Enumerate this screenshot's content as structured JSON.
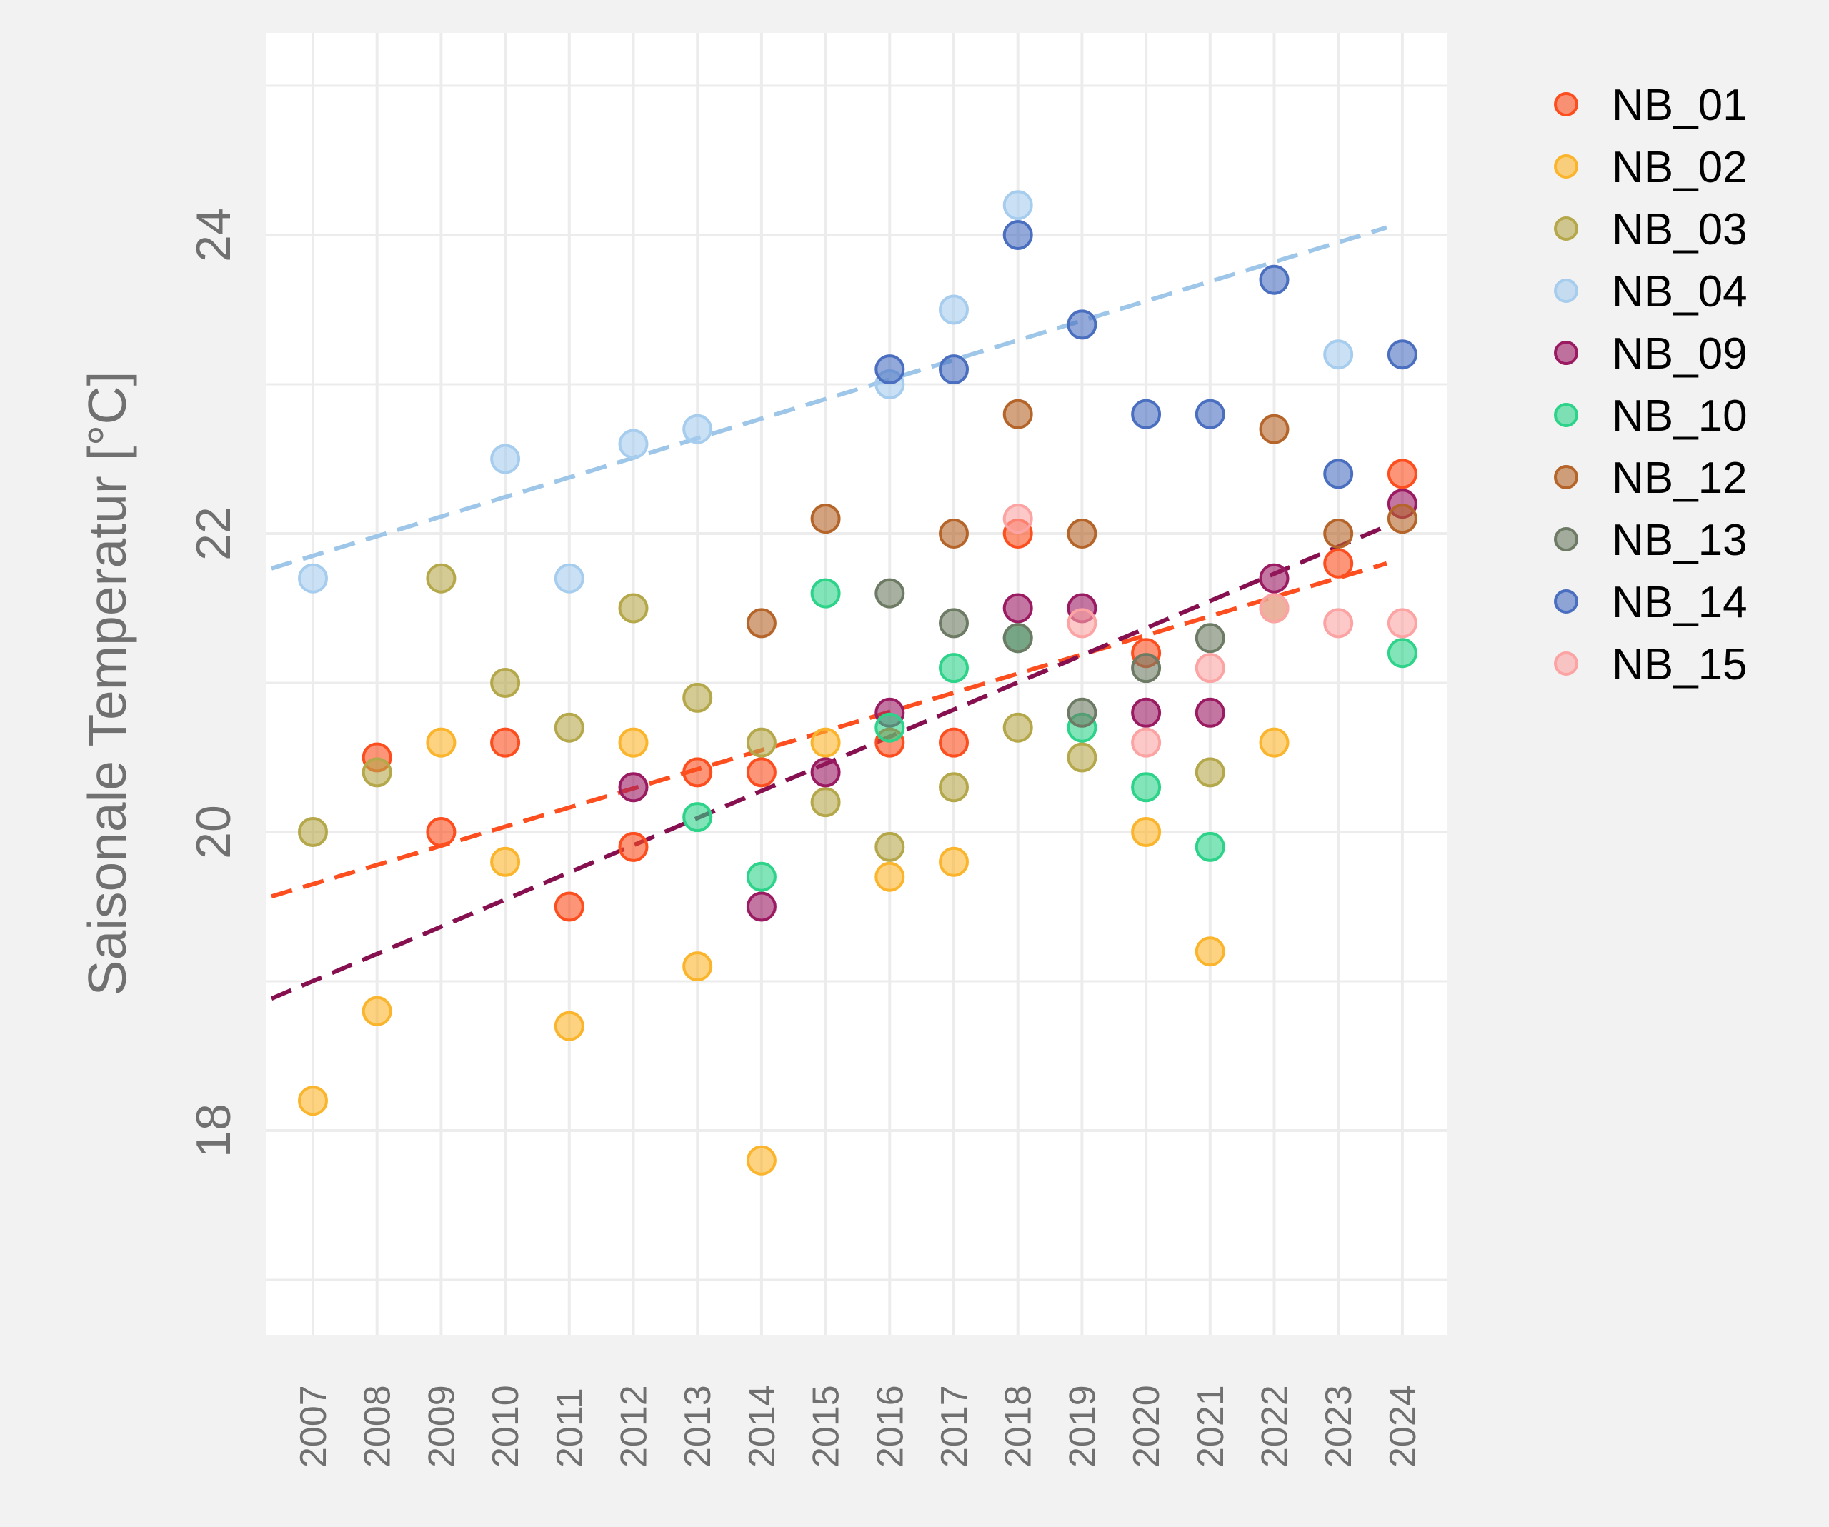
{
  "chart_data": {
    "type": "scatter",
    "title": "",
    "xlabel": "",
    "ylabel": "Saisonale Temperatur [°C]",
    "x": [
      "2007",
      "2008",
      "2009",
      "2010",
      "2011",
      "2012",
      "2013",
      "2014",
      "2015",
      "2016",
      "2017",
      "2018",
      "2019",
      "2020",
      "2021",
      "2022",
      "2023",
      "2024"
    ],
    "yticks": [
      18,
      20,
      22,
      24
    ],
    "ylim": [
      16.8,
      25.5
    ],
    "grid": true,
    "legend_position": "right",
    "series": [
      {
        "name": "NB_01",
        "color": "#fc4e1e",
        "points": [
          [
            2008,
            20.5
          ],
          [
            2009,
            20.0
          ],
          [
            2010,
            20.6
          ],
          [
            2011,
            19.5
          ],
          [
            2012,
            19.9
          ],
          [
            2013,
            20.4
          ],
          [
            2014,
            20.4
          ],
          [
            2016,
            20.6
          ],
          [
            2017,
            20.6
          ],
          [
            2018,
            22.0
          ],
          [
            2020,
            21.2
          ],
          [
            2023,
            21.8
          ],
          [
            2024,
            22.4
          ]
        ]
      },
      {
        "name": "NB_02",
        "color": "#fbb52d",
        "points": [
          [
            2007,
            18.2
          ],
          [
            2008,
            18.8
          ],
          [
            2009,
            20.6
          ],
          [
            2010,
            19.8
          ],
          [
            2011,
            18.7
          ],
          [
            2012,
            20.6
          ],
          [
            2013,
            19.1
          ],
          [
            2014,
            17.8
          ],
          [
            2015,
            20.6
          ],
          [
            2016,
            19.7
          ],
          [
            2017,
            19.8
          ],
          [
            2020,
            20.0
          ],
          [
            2021,
            19.2
          ],
          [
            2022,
            20.6
          ]
        ]
      },
      {
        "name": "NB_03",
        "color": "#b5a84b",
        "points": [
          [
            2007,
            20.0
          ],
          [
            2008,
            20.4
          ],
          [
            2009,
            21.7
          ],
          [
            2010,
            21.0
          ],
          [
            2011,
            20.7
          ],
          [
            2012,
            21.5
          ],
          [
            2013,
            20.9
          ],
          [
            2014,
            20.6
          ],
          [
            2015,
            20.2
          ],
          [
            2016,
            19.9
          ],
          [
            2017,
            20.3
          ],
          [
            2018,
            20.7
          ],
          [
            2019,
            20.5
          ],
          [
            2021,
            20.4
          ],
          [
            2022,
            21.5
          ]
        ]
      },
      {
        "name": "NB_04",
        "color": "#a7cdee",
        "points": [
          [
            2007,
            21.7
          ],
          [
            2010,
            22.5
          ],
          [
            2011,
            21.7
          ],
          [
            2012,
            22.6
          ],
          [
            2013,
            22.7
          ],
          [
            2016,
            23.0
          ],
          [
            2017,
            23.5
          ],
          [
            2018,
            24.2
          ],
          [
            2023,
            23.2
          ]
        ]
      },
      {
        "name": "NB_09",
        "color": "#9b1b63",
        "points": [
          [
            2012,
            20.3
          ],
          [
            2014,
            19.5
          ],
          [
            2015,
            20.4
          ],
          [
            2016,
            20.8
          ],
          [
            2018,
            21.5
          ],
          [
            2019,
            21.5
          ],
          [
            2020,
            20.8
          ],
          [
            2021,
            20.8
          ],
          [
            2022,
            21.7
          ],
          [
            2024,
            22.2
          ]
        ]
      },
      {
        "name": "NB_10",
        "color": "#2ed38a",
        "points": [
          [
            2013,
            20.1
          ],
          [
            2014,
            19.7
          ],
          [
            2015,
            21.6
          ],
          [
            2016,
            20.7
          ],
          [
            2017,
            21.1
          ],
          [
            2018,
            21.3
          ],
          [
            2019,
            20.7
          ],
          [
            2020,
            20.3
          ],
          [
            2021,
            19.9
          ],
          [
            2024,
            21.2
          ]
        ]
      },
      {
        "name": "NB_12",
        "color": "#b5652a",
        "points": [
          [
            2014,
            21.4
          ],
          [
            2015,
            22.1
          ],
          [
            2017,
            22.0
          ],
          [
            2018,
            22.8
          ],
          [
            2019,
            22.0
          ],
          [
            2022,
            22.7
          ],
          [
            2023,
            22.0
          ],
          [
            2024,
            22.1
          ]
        ]
      },
      {
        "name": "NB_13",
        "color": "#6e7b64",
        "points": [
          [
            2016,
            21.6
          ],
          [
            2017,
            21.4
          ],
          [
            2018,
            21.3
          ],
          [
            2019,
            20.8
          ],
          [
            2020,
            21.1
          ],
          [
            2021,
            21.3
          ]
        ]
      },
      {
        "name": "NB_14",
        "color": "#4a6fc0",
        "points": [
          [
            2016,
            23.1
          ],
          [
            2017,
            23.1
          ],
          [
            2018,
            24.0
          ],
          [
            2019,
            23.4
          ],
          [
            2020,
            22.8
          ],
          [
            2021,
            22.8
          ],
          [
            2022,
            23.7
          ],
          [
            2023,
            22.4
          ],
          [
            2024,
            23.2
          ]
        ]
      },
      {
        "name": "NB_15",
        "color": "#fca3a3",
        "points": [
          [
            2018,
            22.1
          ],
          [
            2019,
            21.4
          ],
          [
            2020,
            20.6
          ],
          [
            2021,
            21.1
          ],
          [
            2022,
            21.5
          ],
          [
            2023,
            21.4
          ],
          [
            2024,
            21.4
          ]
        ]
      }
    ],
    "trend_lines": [
      {
        "color": "#9dc6e8",
        "x_from": 2007,
        "x_to": 2024,
        "y_from": 21.85,
        "y_to": 24.05
      },
      {
        "color": "#fc4e1e",
        "x_from": 2007,
        "x_to": 2024,
        "y_from": 19.65,
        "y_to": 21.8
      },
      {
        "color": "#86104f",
        "x_from": 2007,
        "x_to": 2024,
        "y_from": 19.0,
        "y_to": 22.05
      }
    ]
  },
  "colors": {
    "background": "#f2f2f2",
    "panel": "#ffffff",
    "grid": "#ececec",
    "axis_text": "#707070",
    "legend_text": "#000000"
  }
}
